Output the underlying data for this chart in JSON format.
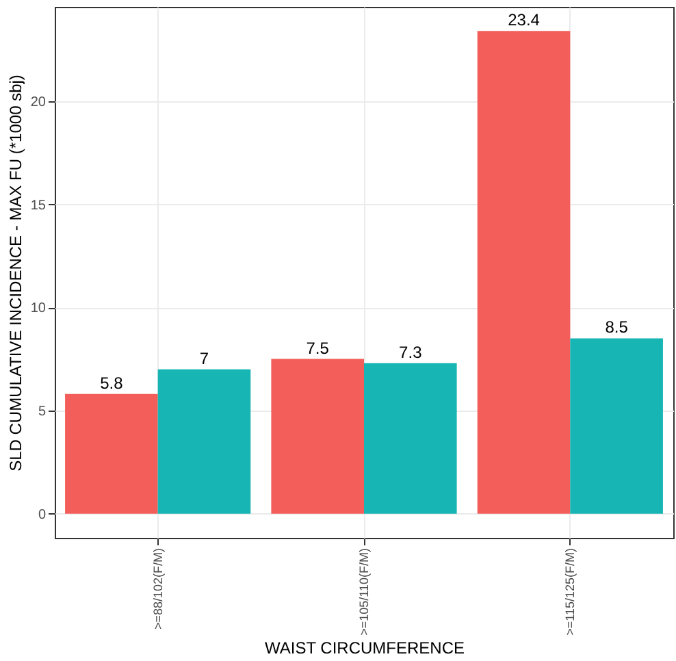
{
  "chart_data": {
    "type": "bar",
    "xlabel": "WAIST CIRCUMFERENCE",
    "ylabel": "SLD CUMULATIVE INCIDENCE - MAX FU (*1000 sbj)",
    "categories": [
      ">=88/102(F/M)",
      ">=105/110(F/M)",
      ">=115/125(F/M)"
    ],
    "series": [
      {
        "color": "#f35e5a",
        "values": [
          5.8,
          7.5,
          23.4
        ]
      },
      {
        "color": "#17b5b4",
        "values": [
          7,
          7.3,
          8.5
        ]
      }
    ],
    "ylim": [
      -1.17,
      24.57
    ],
    "yticks": [
      0,
      5,
      10,
      15,
      20
    ],
    "grid": true,
    "data_labels": true
  }
}
